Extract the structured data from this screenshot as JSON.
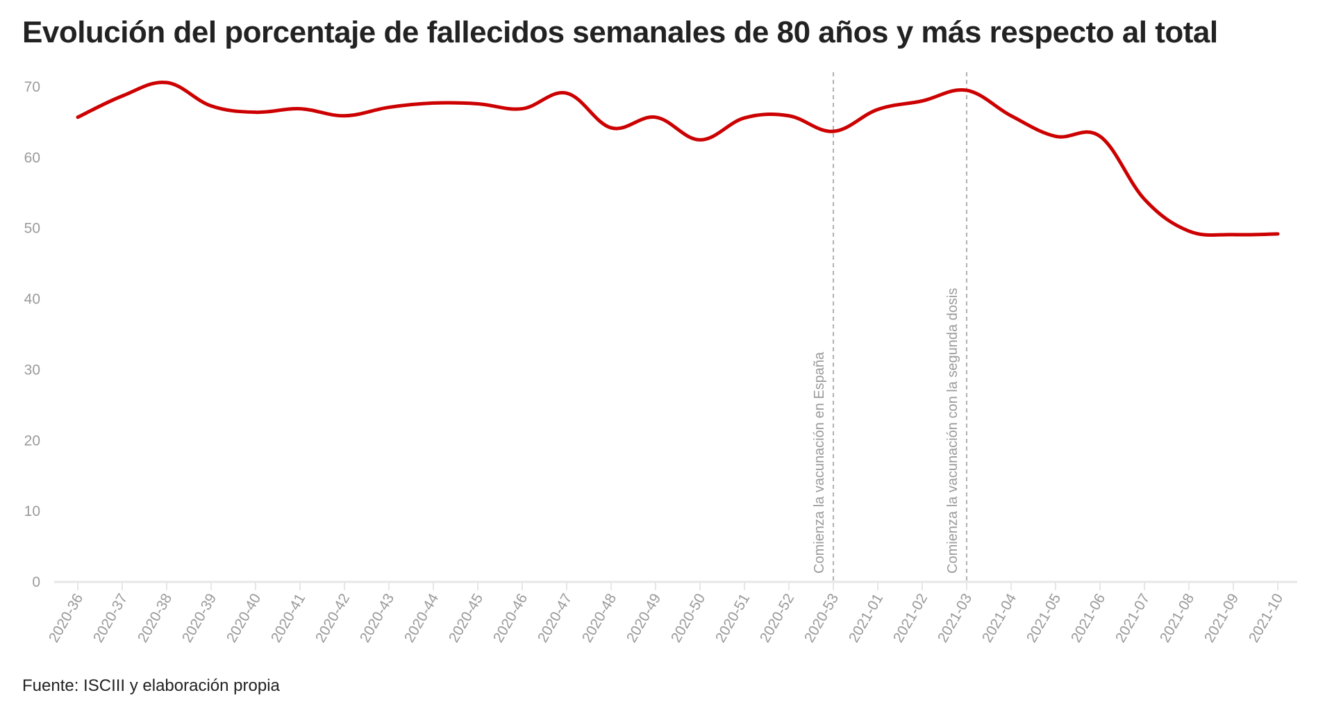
{
  "title": "Evolución del porcentaje de fallecidos semanales de 80 años y más respecto al total",
  "source": "Fuente: ISCIII y elaboración propia",
  "colors": {
    "line": "#cc0000",
    "axis": "#e6e6e6",
    "tick_text": "#9a9a9a",
    "annotation": "#9a9a9a"
  },
  "chart_data": {
    "type": "line",
    "title": "Evolución del porcentaje de fallecidos semanales de 80 años y más respecto al total",
    "xlabel": "",
    "ylabel": "",
    "ylim": [
      0,
      70
    ],
    "yticks": [
      0,
      10,
      20,
      30,
      40,
      50,
      60,
      70
    ],
    "grid": false,
    "categories": [
      "2020-36",
      "2020-37",
      "2020-38",
      "2020-39",
      "2020-40",
      "2020-41",
      "2020-42",
      "2020-43",
      "2020-44",
      "2020-45",
      "2020-46",
      "2020-47",
      "2020-48",
      "2020-49",
      "2020-50",
      "2020-51",
      "2020-52",
      "2020-53",
      "2021-01",
      "2021-02",
      "2021-03",
      "2021-04",
      "2021-05",
      "2021-06",
      "2021-07",
      "2021-08",
      "2021-09",
      "2021-10"
    ],
    "series": [
      {
        "values": [
          65.7,
          68.7,
          70.6,
          67.3,
          66.4,
          66.9,
          65.9,
          67.1,
          67.7,
          67.6,
          66.9,
          69.1,
          64.2,
          65.7,
          62.5,
          65.6,
          65.9,
          63.7,
          66.8,
          68.0,
          69.5,
          65.9,
          63.0,
          63.0,
          54.1,
          49.6,
          49.1,
          49.2
        ]
      }
    ],
    "annotations": [
      {
        "x": "2020-53",
        "label": "Comienza la vacunación en España"
      },
      {
        "x": "2021-03",
        "label": "Comienza la vacunación con la segunda dosis"
      }
    ]
  }
}
